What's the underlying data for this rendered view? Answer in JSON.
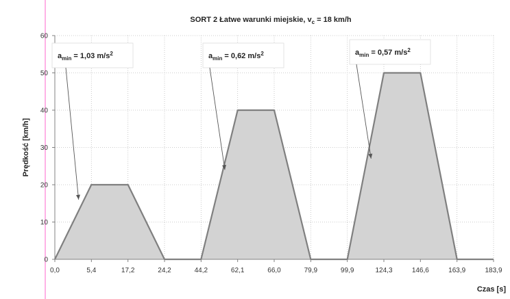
{
  "colors": {
    "fill": "#d3d3d3",
    "stroke": "#7f7f7f",
    "grid": "#bdbdbd",
    "axis": "#808080",
    "margin_line": "#ff66cc",
    "text": "#222222"
  },
  "chart_data": {
    "type": "area",
    "title_parts": {
      "prefix": "SORT 2 Łatwe warunki miejskie, v",
      "sub": "c",
      "suffix": " = 18 km/h"
    },
    "ylabel": "Prędkość [km/h]",
    "xlabel": "Czas [s]",
    "ylim": [
      0,
      60
    ],
    "yticks": [
      0,
      10,
      20,
      30,
      40,
      50,
      60
    ],
    "xticks": [
      "0,0",
      "5,4",
      "17,2",
      "24,2",
      "44,2",
      "62,1",
      "66,0",
      "79,9",
      "99,9",
      "124,3",
      "146,6",
      "163,9",
      "183,9"
    ],
    "grid": "vertical dotted and horizontal dotted",
    "series": [
      {
        "values": [
          0,
          20,
          20,
          0,
          0,
          40,
          40,
          0,
          0,
          50,
          50,
          0,
          0
        ]
      }
    ],
    "annotations": [
      {
        "prefix": "a",
        "sub": "min",
        "value": " = 1,03 m/s",
        "sup": "2",
        "arrow_to_x_index": 0.5,
        "arrow_to_y": 16
      },
      {
        "prefix": "a",
        "sub": "min",
        "value": " = 0,62 m/s",
        "sup": "2",
        "arrow_to_x_index": 4.5,
        "arrow_to_y": 24
      },
      {
        "prefix": "a",
        "sub": "min",
        "value": " = 0,57 m/s",
        "sup": "2",
        "arrow_to_x_index": 8.5,
        "arrow_to_y": 27
      }
    ]
  }
}
